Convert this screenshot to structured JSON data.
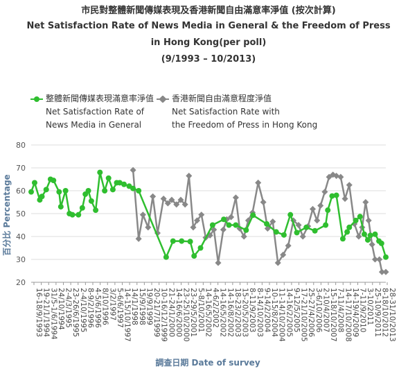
{
  "titles": {
    "zh": "市民對整體新聞傳媒表現及香港新聞自由滿意率淨值 (按次計算)",
    "en1": "Net Satisfaction Rate of News Media in General & the Freedom of Press",
    "en2": "in Hong Kong(per poll)",
    "period": "(9/1993 – 10/2013)"
  },
  "legend": {
    "s1_zh": "整體新聞傳媒表現滿意率淨值",
    "s1_en1": "Net Satisfaction Rate of",
    "s1_en2": "News Media in General",
    "s2_zh": "香港新聞自由滿意程度淨值",
    "s2_en1": "Net Satisfaction Rate with",
    "s2_en2": "the Freedom of Press in Hong Kong"
  },
  "colors": {
    "series1": "#2fbe2f",
    "series2": "#888888",
    "grid": "#dddddd",
    "axis_title": "#5a7a9a"
  },
  "chart_data": {
    "type": "line",
    "xlabel": "調查日期 Date of survey",
    "ylabel": "百分比 Percentage",
    "ylim": [
      20,
      80
    ],
    "yticks": [
      20,
      30,
      40,
      50,
      60,
      70,
      80
    ],
    "grid": true,
    "legend_position": "top-left",
    "categories": [
      "16-18/9/1993",
      "19-21/1/1994",
      "31/5-1/6/1994",
      "24/10/1994",
      "2-4/3/1995",
      "23-26/6/1995",
      "2-4/10/1995",
      "8-9/2/1996",
      "4-5/6/1996",
      "8/10/1996",
      "3/2/1997",
      "5-6/6/1997",
      "14-15/10/1997",
      "14/1/1998",
      "15/9/1998",
      "19/9/1999",
      "20-21/7/1999",
      "10-16/12/1999",
      "21-24/1/2000",
      "14-16/6/2000",
      "23-25/10/2000",
      "23-29/5/2001",
      "5-8/10/2001",
      "14-16/5/2002",
      "4-6/2/2002",
      "14-16/5/2002",
      "14-16/8/2002",
      "18-23/2/2003",
      "15-20/5/2003",
      "8-11/9/2003",
      "8-14/10/2003",
      "9-14/2/2004",
      "10-15/8/2004",
      "11-14/10/2004",
      "14-16/2/2005",
      "9-12/5/2005",
      "17-21/10/2005",
      "25-27/4/2006",
      "3-6/10/2006",
      "2-10/4/2007",
      "15-18/10/2007",
      "7-11/4/2008",
      "14-17/10/2008",
      "14-19/4/2009",
      "7-11/9/2010",
      "3-10/2011",
      "25-10/9/2011",
      "8-18/10/2012",
      "28-31/10/2013"
    ],
    "series": [
      {
        "name": "整體新聞傳媒表現滿意率淨值 Net Satisfaction Rate of News Media in General",
        "color": "#2fbe2f",
        "x": [
          0.0,
          0.8,
          2.0,
          2.5,
          3.5,
          4.5,
          5.2,
          6.5,
          6.9,
          8.0,
          8.9,
          9.6,
          11.0,
          11.9,
          12.6,
          13.3,
          14.0,
          15.0,
          16.0,
          17.1,
          18.0,
          19.0,
          19.9,
          20.6,
          21.6,
          22.8,
          23.7,
          25.0,
          31.4,
          33.0,
          35.0,
          37.0,
          37.9,
          39.4,
          42.2,
          44.8,
          46.0,
          47.6,
          50.0,
          51.6,
          54.8,
          57.0,
          58.8,
          60.3,
          61.8,
          64.0,
          66.0,
          68.5,
          69.0,
          70.0,
          71.0,
          72.5,
          73.5,
          74.0,
          75.5,
          76.5,
          77.5,
          78.3,
          78.9,
          80.0,
          80.9,
          81.5,
          82.5
        ],
        "values": [
          59.5,
          63.5,
          56,
          57.5,
          60.5,
          65,
          64.5,
          59.5,
          53,
          60,
          50,
          49.5,
          49.5,
          52.5,
          58.5,
          60,
          55.5,
          51.5,
          68,
          60,
          65.5,
          60.5,
          63.5,
          63.5,
          62.8,
          62,
          61,
          60,
          31,
          38,
          38,
          37.8,
          31.5,
          35,
          45,
          47.5,
          45,
          45,
          42.8,
          49.3,
          45.5,
          42,
          40.7,
          49.5,
          41.7,
          44,
          42.5,
          45,
          51.5,
          57.7,
          58,
          39,
          42,
          44,
          47,
          48.7,
          41,
          38.5,
          40.5,
          41,
          38,
          37,
          31
        ]
      },
      {
        "name": "香港新聞自由滿意程度淨值 Net Satisfaction Rate with the Freedom of Press in Hong Kong",
        "color": "#888888",
        "x": [
          23.7,
          25.0,
          26.0,
          27.2,
          28.3,
          29.4,
          30.8,
          31.8,
          32.7,
          33.8,
          34.8,
          35.8,
          36.7,
          37.7,
          38.6,
          39.6,
          40.6,
          41.6,
          42.5,
          43.5,
          44.7,
          45.5,
          46.5,
          47.6,
          48.5,
          49.5,
          50.5,
          51.5,
          52.8,
          54.0,
          55.0,
          56.2,
          57.4,
          58.6,
          59.8,
          61.0,
          62.2,
          63.2,
          64.4,
          65.5,
          66.5,
          67.3,
          68.3,
          69.3,
          70.2,
          71.0,
          72.0,
          73.0,
          74.0,
          75.2,
          76.2,
          77.0,
          77.8,
          78.5,
          79.3,
          80.0,
          81.0,
          81.6,
          82.5
        ],
        "values": [
          69,
          39,
          49.5,
          44,
          57.5,
          41.5,
          56.5,
          54.5,
          56,
          54,
          56,
          54,
          66.5,
          44,
          47,
          49.5,
          39.5,
          40.5,
          43,
          28.5,
          43,
          47.5,
          48.5,
          57,
          43.5,
          40,
          47,
          50.5,
          63.5,
          55,
          43.5,
          46.5,
          28.5,
          32,
          36,
          47,
          45,
          40,
          44.5,
          52,
          47,
          53.5,
          59.5,
          66,
          67,
          66.5,
          66,
          56.5,
          62.5,
          45.5,
          40,
          44,
          55,
          47,
          36.5,
          30,
          30,
          24.5,
          24.5
        ]
      }
    ]
  }
}
